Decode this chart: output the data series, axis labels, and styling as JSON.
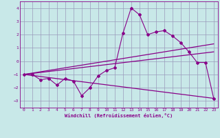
{
  "xlabel": "Windchill (Refroidissement éolien,°C)",
  "bg_color": "#c8e8e8",
  "line_color": "#880088",
  "grid_color": "#9999bb",
  "xlim": [
    -0.5,
    23.5
  ],
  "ylim": [
    -3.5,
    4.5
  ],
  "xticks": [
    0,
    1,
    2,
    3,
    4,
    5,
    6,
    7,
    8,
    9,
    10,
    11,
    12,
    13,
    14,
    15,
    16,
    17,
    18,
    19,
    20,
    21,
    22,
    23
  ],
  "yticks": [
    -3,
    -2,
    -1,
    0,
    1,
    2,
    3,
    4
  ],
  "scatter_x": [
    0,
    1,
    2,
    3,
    4,
    5,
    6,
    7,
    8,
    9,
    10,
    11,
    12,
    13,
    14,
    15,
    16,
    17,
    18,
    19,
    20,
    21,
    22,
    23
  ],
  "scatter_y": [
    -1.0,
    -1.0,
    -1.4,
    -1.3,
    -1.8,
    -1.3,
    -1.5,
    -2.6,
    -2.0,
    -1.1,
    -0.7,
    -0.5,
    2.1,
    4.0,
    3.5,
    2.0,
    2.2,
    2.3,
    1.9,
    1.4,
    0.7,
    -0.1,
    -0.1,
    -2.8
  ],
  "line1_x": [
    0,
    23
  ],
  "line1_y": [
    -1.0,
    1.3
  ],
  "line2_x": [
    0,
    23
  ],
  "line2_y": [
    -1.0,
    0.7
  ],
  "line3_x": [
    0,
    23
  ],
  "line3_y": [
    -1.0,
    -2.8
  ]
}
